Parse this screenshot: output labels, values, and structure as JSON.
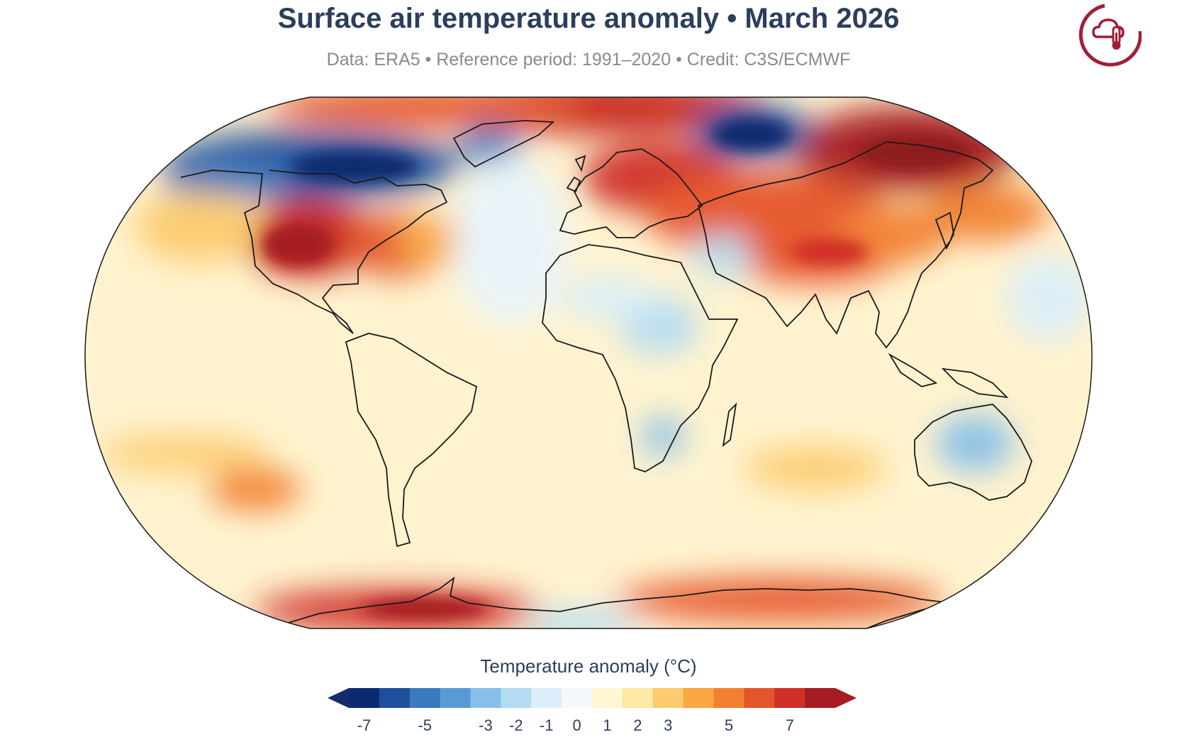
{
  "header": {
    "title": "Surface air temperature anomaly • March 2026",
    "subtitle": "Data: ERA5 • Reference period: 1991–2020 • Credit: C3S/ECMWF"
  },
  "map": {
    "projection": "Robinson (world)",
    "variable": "Surface air temperature anomaly",
    "ocean_base_color": "#fff5d6",
    "outline_color": "#1a1a1a"
  },
  "colorbar": {
    "title": "Temperature anomaly (°C)",
    "ticks": [
      "-7",
      "-5",
      "-3",
      "-2",
      "-1",
      "0",
      "1",
      "2",
      "3",
      "5",
      "7"
    ],
    "colors": [
      "#0b2a6f",
      "#1f4e9c",
      "#3a78c0",
      "#5a9ad4",
      "#86c0ea",
      "#b3dcf3",
      "#daeef9",
      "#f4f9fd",
      "#fff6d3",
      "#fde8a6",
      "#fccb6e",
      "#f9a740",
      "#f28030",
      "#e5552a",
      "#cf2f27",
      "#a51d22"
    ],
    "lower_extend": "#142c6a",
    "upper_extend": "#a51d22"
  },
  "logo": {
    "icon": "c3s-climate-thermometer-icon",
    "color": "#a11d38"
  }
}
